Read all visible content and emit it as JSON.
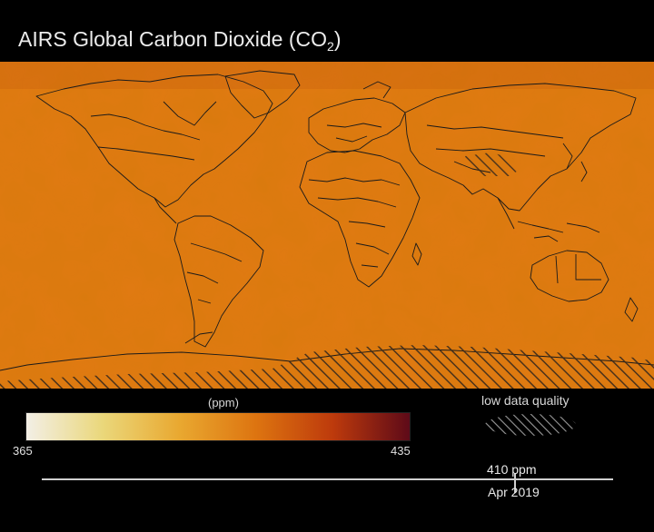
{
  "title": {
    "main": "AIRS Global Carbon Dioxide",
    "formula_prefix": "(CO",
    "formula_sub": "2",
    "formula_suffix": ")"
  },
  "colorbar": {
    "unit": "(ppm)",
    "min": "365",
    "max": "435",
    "colors": [
      "#f3efe6",
      "#ead77a",
      "#e9a830",
      "#dd7410",
      "#bd3a0c",
      "#5e0a18"
    ]
  },
  "legend": {
    "low_quality_label": "low data quality"
  },
  "timeline": {
    "value_label": "410 ppm",
    "date_label": "Apr 2019"
  },
  "map": {
    "base_color": "#e07a12",
    "border_color": "#1a1a1a",
    "hatch_color": "#3a2a1c"
  }
}
